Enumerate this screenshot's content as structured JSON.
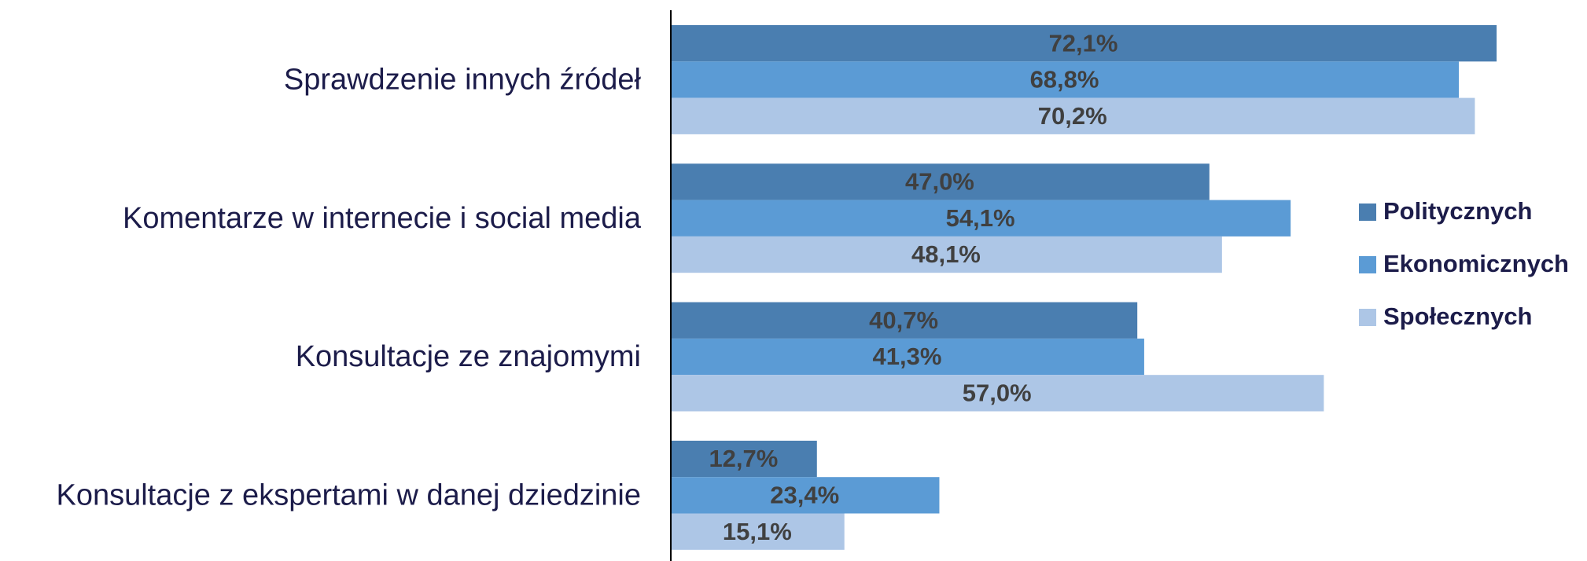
{
  "chart_data": {
    "type": "bar",
    "orientation": "horizontal",
    "categories": [
      "Sprawdzenie innych źródeł",
      "Komentarze w internecie i social media",
      "Konsultacje ze znajomymi",
      "Konsultacje z ekspertami w danej dziedzinie"
    ],
    "series": [
      {
        "name": "Politycznych",
        "color": "#4a7eb0",
        "values": [
          72.1,
          47.0,
          40.7,
          12.7
        ],
        "value_labels": [
          "72,1%",
          "47,0%",
          "40,7%",
          "12,7%"
        ]
      },
      {
        "name": "Ekonomicznych",
        "color": "#5b9bd5",
        "values": [
          68.8,
          54.1,
          41.3,
          23.4
        ],
        "value_labels": [
          "68,8%",
          "54,1%",
          "41,3%",
          "23,4%"
        ]
      },
      {
        "name": "Społecznych",
        "color": "#adc6e6",
        "values": [
          70.2,
          48.1,
          57.0,
          15.1
        ],
        "value_labels": [
          "70,2%",
          "48,1%",
          "57,0%",
          "15,1%"
        ]
      }
    ],
    "legend": "right"
  }
}
